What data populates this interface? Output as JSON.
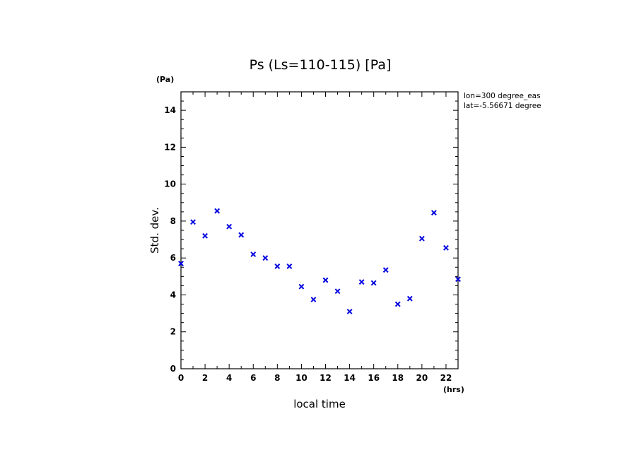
{
  "chart_data": {
    "type": "scatter",
    "title": "Ps (Ls=110-115) [Pa]",
    "xlabel": "local time",
    "ylabel": "Std. dev.",
    "x_unit": "(hrs)",
    "y_unit": "(Pa)",
    "xlim": [
      0,
      23
    ],
    "ylim": [
      0,
      15
    ],
    "x_ticks": [
      "0",
      "2",
      "4",
      "6",
      "8",
      "10",
      "12",
      "14",
      "16",
      "18",
      "20",
      "22"
    ],
    "y_ticks": [
      "0",
      "2",
      "4",
      "6",
      "8",
      "10",
      "12",
      "14"
    ],
    "annotations": [
      "lon=300 degree_eas",
      "lat=-5.56671 degree"
    ],
    "marker": "x",
    "marker_color": "#0000e0",
    "series": [
      {
        "x": [
          0,
          1,
          2,
          3,
          4,
          5,
          6,
          7,
          8,
          9,
          10,
          11,
          12,
          13,
          14,
          15,
          16,
          17,
          18,
          19,
          20,
          21,
          22,
          23
        ],
        "y": [
          5.7,
          7.95,
          7.2,
          8.55,
          7.7,
          7.25,
          6.2,
          6.0,
          5.55,
          5.55,
          4.45,
          3.75,
          4.8,
          4.2,
          3.1,
          4.7,
          4.65,
          5.35,
          3.5,
          3.8,
          7.05,
          8.45,
          6.55,
          4.85
        ]
      }
    ]
  }
}
